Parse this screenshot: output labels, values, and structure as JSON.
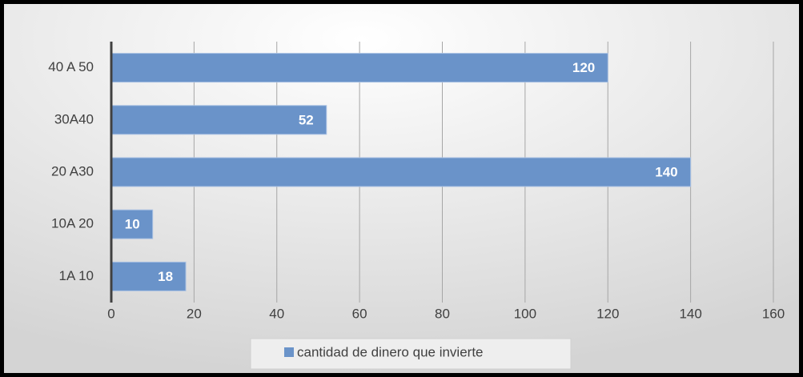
{
  "chart_data": {
    "type": "bar",
    "orientation": "horizontal",
    "categories": [
      "1A 10",
      "10A 20",
      "20 A30",
      "30A40",
      "40 A 50"
    ],
    "series": [
      {
        "name": "cantidad de dinero que invierte",
        "color": "#6a93c9",
        "values": [
          18,
          10,
          140,
          52,
          120
        ]
      }
    ],
    "xlim": [
      0,
      160
    ],
    "xticks": [
      0,
      20,
      40,
      60,
      80,
      100,
      120,
      140,
      160
    ],
    "grid": true,
    "legend": "bottom"
  }
}
